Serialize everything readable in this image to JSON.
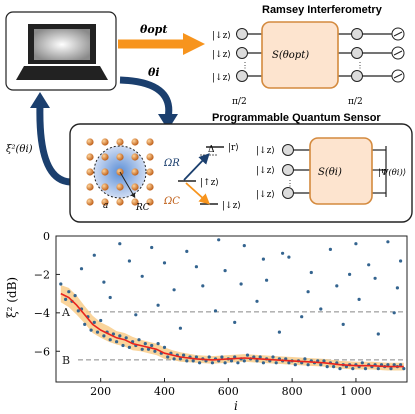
{
  "diagram": {
    "ramsey_title": "Ramsey Interferometry",
    "sensor_title": "Programmable Quantum Sensor",
    "theta_opt": "θopt",
    "theta_i": "θi",
    "xi_label": "ξ²(θi)",
    "ket_down": "|↓z⟩",
    "ket_up": "|↑z⟩",
    "ket_r": "|r⟩",
    "pi_half_left": "π/2",
    "pi_half_right": "π/2",
    "S_opt": "S(θopt)",
    "S_i": "S(θi)",
    "psi": "|Ψ(θi)⟩",
    "omega_R": "ΩR",
    "omega_C": "ΩC",
    "delta": "Δ",
    "lattice_a": "a",
    "radius": "RC",
    "colors": {
      "orange": "#f7941d",
      "navy": "#1b3f6e",
      "gate_fill": "#fde4cf",
      "gate_stroke": "#d48a3e"
    }
  },
  "chart_data": {
    "type": "scatter",
    "xlabel": "i",
    "ylabel": "ξ² (dB)",
    "xlim": [
      60,
      1160
    ],
    "ylim": [
      -7.6,
      0
    ],
    "xticks": [
      200,
      400,
      600,
      800,
      1000
    ],
    "xtick_labels": [
      "200",
      "400",
      "600",
      "800",
      "1 000"
    ],
    "yticks": [
      0,
      -2,
      -4,
      -6
    ],
    "ytick_labels": [
      "0",
      "−2",
      "−4",
      "−6"
    ],
    "reference_lines": [
      {
        "label": "A",
        "y": -3.95
      },
      {
        "label": "B",
        "y": -6.45
      }
    ],
    "series": [
      {
        "name": "",
        "style": "scatter",
        "color": "#34648f",
        "points": [
          [
            75,
            -2.5
          ],
          [
            90,
            -3.3
          ],
          [
            100,
            -2.9
          ],
          [
            110,
            -3.4
          ],
          [
            120,
            -3.1
          ],
          [
            130,
            -3.9
          ],
          [
            140,
            -3.8
          ],
          [
            150,
            -4.6
          ],
          [
            160,
            -4.2
          ],
          [
            170,
            -4.9
          ],
          [
            180,
            -4.5
          ],
          [
            190,
            -5.0
          ],
          [
            200,
            -4.4
          ],
          [
            210,
            -5.2
          ],
          [
            220,
            -5.0
          ],
          [
            230,
            -5.4
          ],
          [
            240,
            -5.1
          ],
          [
            250,
            -5.5
          ],
          [
            260,
            -5.2
          ],
          [
            270,
            -5.7
          ],
          [
            280,
            -5.3
          ],
          [
            290,
            -5.8
          ],
          [
            300,
            -5.5
          ],
          [
            310,
            -5.7
          ],
          [
            320,
            -5.4
          ],
          [
            330,
            -5.9
          ],
          [
            340,
            -5.6
          ],
          [
            350,
            -5.9
          ],
          [
            360,
            -5.7
          ],
          [
            370,
            -6.0
          ],
          [
            380,
            -5.6
          ],
          [
            390,
            -6.1
          ],
          [
            400,
            -5.8
          ],
          [
            410,
            -6.3
          ],
          [
            420,
            -6.1
          ],
          [
            430,
            -6.4
          ],
          [
            440,
            -6.2
          ],
          [
            450,
            -6.4
          ],
          [
            460,
            -6.2
          ],
          [
            470,
            -6.5
          ],
          [
            480,
            -6.3
          ],
          [
            490,
            -6.5
          ],
          [
            500,
            -6.3
          ],
          [
            510,
            -6.6
          ],
          [
            520,
            -6.4
          ],
          [
            530,
            -6.5
          ],
          [
            540,
            -6.3
          ],
          [
            550,
            -6.6
          ],
          [
            560,
            -6.4
          ],
          [
            570,
            -6.5
          ],
          [
            580,
            -6.3
          ],
          [
            590,
            -6.6
          ],
          [
            600,
            -6.4
          ],
          [
            610,
            -6.5
          ],
          [
            620,
            -6.3
          ],
          [
            630,
            -6.6
          ],
          [
            640,
            -6.4
          ],
          [
            650,
            -6.5
          ],
          [
            660,
            -6.2
          ],
          [
            670,
            -6.4
          ],
          [
            680,
            -6.3
          ],
          [
            690,
            -6.5
          ],
          [
            700,
            -6.3
          ],
          [
            710,
            -6.6
          ],
          [
            720,
            -6.4
          ],
          [
            730,
            -6.5
          ],
          [
            740,
            -6.3
          ],
          [
            750,
            -6.6
          ],
          [
            760,
            -6.4
          ],
          [
            770,
            -6.5
          ],
          [
            780,
            -6.4
          ],
          [
            790,
            -6.6
          ],
          [
            800,
            -6.5
          ],
          [
            810,
            -6.7
          ],
          [
            820,
            -6.5
          ],
          [
            830,
            -6.6
          ],
          [
            840,
            -6.4
          ],
          [
            850,
            -6.7
          ],
          [
            860,
            -6.5
          ],
          [
            870,
            -6.6
          ],
          [
            880,
            -6.5
          ],
          [
            890,
            -6.7
          ],
          [
            900,
            -6.5
          ],
          [
            910,
            -6.8
          ],
          [
            920,
            -6.6
          ],
          [
            930,
            -6.8
          ],
          [
            940,
            -6.6
          ],
          [
            950,
            -6.9
          ],
          [
            960,
            -6.7
          ],
          [
            970,
            -6.8
          ],
          [
            980,
            -6.7
          ],
          [
            990,
            -6.9
          ],
          [
            1000,
            -6.7
          ],
          [
            1010,
            -6.8
          ],
          [
            1020,
            -6.6
          ],
          [
            1030,
            -6.9
          ],
          [
            1040,
            -6.7
          ],
          [
            1050,
            -6.8
          ],
          [
            1060,
            -6.7
          ],
          [
            1070,
            -6.9
          ],
          [
            1080,
            -6.7
          ],
          [
            1090,
            -6.8
          ],
          [
            1100,
            -6.7
          ],
          [
            1110,
            -6.9
          ],
          [
            1120,
            -6.7
          ],
          [
            1130,
            -6.8
          ],
          [
            1140,
            -6.7
          ],
          [
            1150,
            -6.9
          ],
          [
            180,
            -1.0
          ],
          [
            260,
            -0.4
          ],
          [
            330,
            -2.1
          ],
          [
            400,
            -1.4
          ],
          [
            470,
            -0.8
          ],
          [
            520,
            -2.6
          ],
          [
            590,
            -1.8
          ],
          [
            650,
            -0.5
          ],
          [
            720,
            -2.3
          ],
          [
            790,
            -1.1
          ],
          [
            850,
            -2.9
          ],
          [
            920,
            -0.7
          ],
          [
            980,
            -2.0
          ],
          [
            1040,
            -1.5
          ],
          [
            1100,
            -0.3
          ],
          [
            1130,
            -2.7
          ],
          [
            230,
            -3.2
          ],
          [
            310,
            -4.1
          ],
          [
            380,
            -3.6
          ],
          [
            450,
            -4.8
          ],
          [
            560,
            -3.9
          ],
          [
            620,
            -4.5
          ],
          [
            690,
            -3.4
          ],
          [
            760,
            -5.0
          ],
          [
            830,
            -4.2
          ],
          [
            890,
            -3.8
          ],
          [
            960,
            -4.6
          ],
          [
            1010,
            -3.3
          ],
          [
            1070,
            -5.1
          ],
          [
            1120,
            -4.0
          ],
          [
            140,
            -1.7
          ],
          [
            210,
            -2.4
          ],
          [
            290,
            -1.3
          ],
          [
            360,
            -0.6
          ],
          [
            430,
            -2.8
          ],
          [
            500,
            -1.6
          ],
          [
            570,
            -0.2
          ],
          [
            640,
            -2.5
          ],
          [
            710,
            -1.2
          ],
          [
            770,
            -0.9
          ],
          [
            860,
            -1.9
          ],
          [
            940,
            -2.6
          ],
          [
            1000,
            -0.4
          ],
          [
            1060,
            -2.2
          ],
          [
            1140,
            -1.3
          ]
        ]
      },
      {
        "name": "",
        "style": "line",
        "color": "#e8251e",
        "x": [
          75,
          100,
          125,
          150,
          175,
          200,
          225,
          250,
          275,
          300,
          325,
          350,
          375,
          400,
          425,
          450,
          500,
          550,
          600,
          650,
          700,
          750,
          800,
          850,
          900,
          950,
          1000,
          1050,
          1100,
          1150
        ],
        "y": [
          -3.0,
          -3.2,
          -3.6,
          -4.1,
          -4.6,
          -4.9,
          -5.1,
          -5.3,
          -5.4,
          -5.6,
          -5.7,
          -5.8,
          -5.9,
          -6.1,
          -6.2,
          -6.3,
          -6.4,
          -6.45,
          -6.4,
          -6.35,
          -6.4,
          -6.45,
          -6.5,
          -6.55,
          -6.6,
          -6.7,
          -6.75,
          -6.75,
          -6.8,
          -6.8
        ],
        "band_halfwidth": [
          0.45,
          0.5,
          0.5,
          0.45,
          0.45,
          0.4,
          0.4,
          0.35,
          0.35,
          0.35,
          0.3,
          0.3,
          0.3,
          0.3,
          0.25,
          0.25,
          0.2,
          0.2,
          0.2,
          0.2,
          0.2,
          0.2,
          0.2,
          0.2,
          0.2,
          0.2,
          0.2,
          0.2,
          0.2,
          0.2
        ],
        "band_color": "#f9cd8a"
      }
    ]
  }
}
